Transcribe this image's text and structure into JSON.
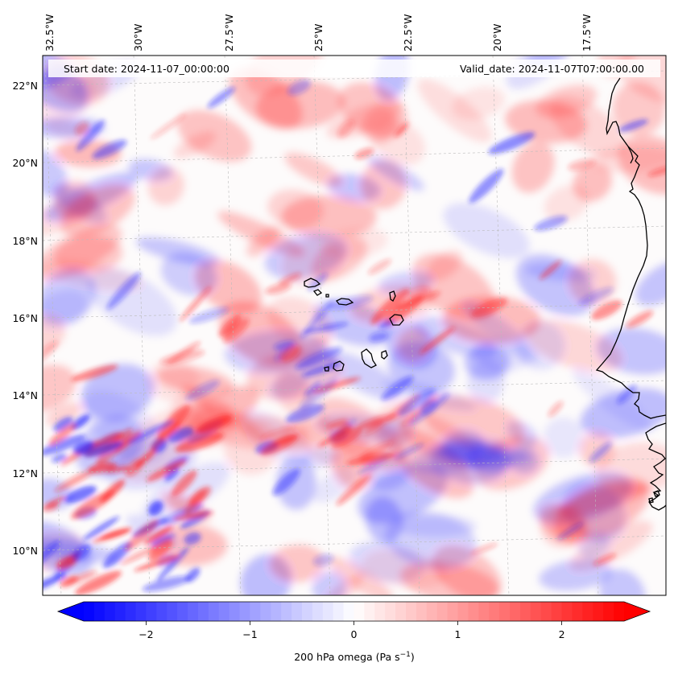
{
  "map": {
    "start_date": "Start date: 2024-11-07_00:00:00",
    "valid_date": "Valid_date: 2024-11-07T07:00:00.00",
    "lon_ticks": [
      "32.5°W",
      "30°W",
      "27.5°W",
      "25°W",
      "22.5°W",
      "20°W",
      "17.5°W"
    ],
    "lat_ticks": [
      "22°N",
      "20°N",
      "18°N",
      "16°N",
      "14°N",
      "12°N",
      "10°N"
    ],
    "coastline_color": "#000000",
    "gridlines": true
  },
  "colorbar": {
    "label": "200 hPa omega (Pa s",
    "label_sup": "−1",
    "label_end": ")",
    "ticks": [
      "−2",
      "−1",
      "0",
      "1",
      "2"
    ],
    "tick_values": [
      -2,
      -1,
      0,
      1,
      2
    ],
    "range": [
      -2.6,
      2.6
    ],
    "extend": "both",
    "colormap": "bwr",
    "low_color": "#0000ff",
    "mid_color": "#ffffff",
    "high_color": "#ff0000"
  }
}
